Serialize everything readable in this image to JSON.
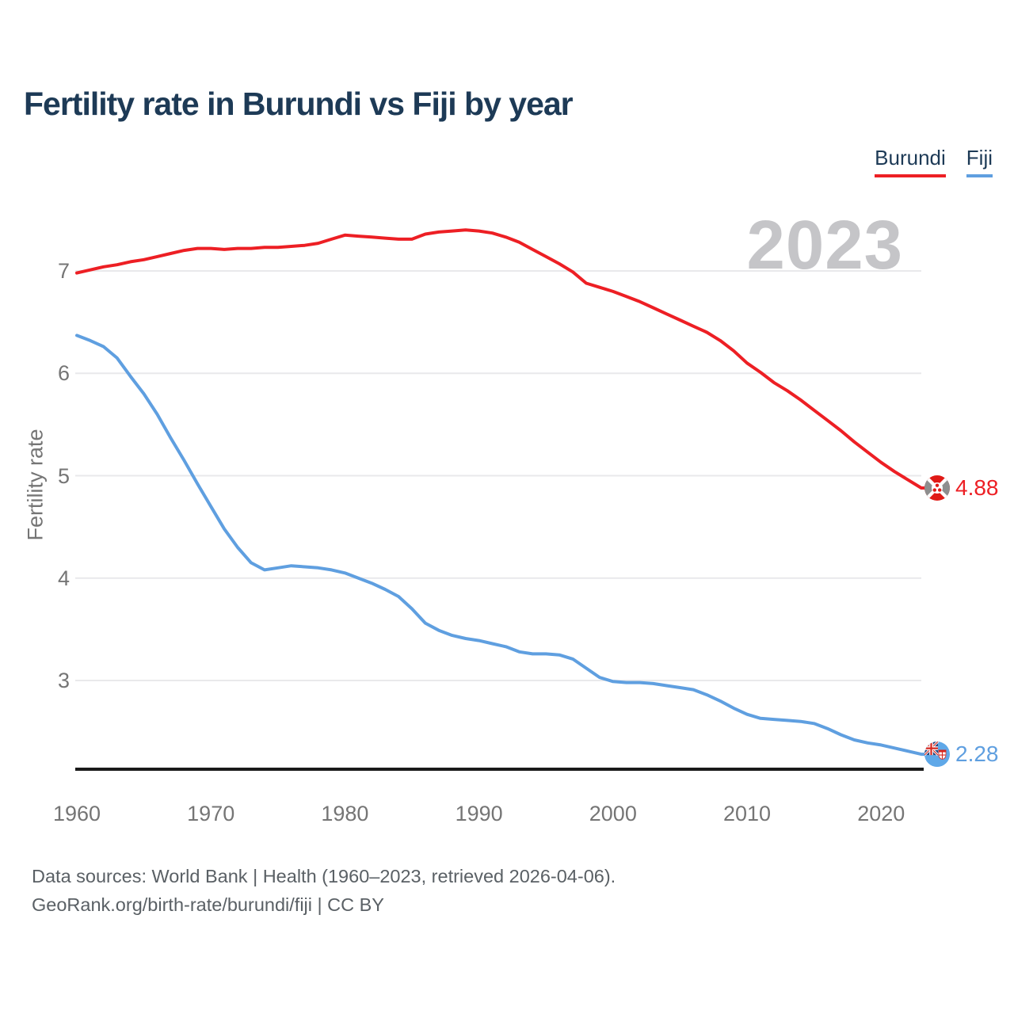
{
  "header": {
    "title": "Fertility rate in Burundi vs Fiji by year"
  },
  "legend": {
    "position": "top-right",
    "items": [
      {
        "label": "Burundi",
        "color": "#ed1f24"
      },
      {
        "label": "Fiji",
        "color": "#5f9fe0"
      }
    ]
  },
  "chart_data": {
    "type": "line",
    "title": "Fertility rate in Burundi vs Fiji by year",
    "ylabel": "Fertility rate",
    "watermark": "2023",
    "grid": "horizontal",
    "legend_position": "top-right",
    "x_ticks": [
      1960,
      1970,
      1980,
      1990,
      2000,
      2010,
      2020
    ],
    "y_ticks": [
      3,
      4,
      5,
      6,
      7
    ],
    "xlim": [
      1960,
      2023
    ],
    "ylim": [
      2.1,
      7.65
    ],
    "x": [
      1960,
      1961,
      1962,
      1963,
      1964,
      1965,
      1966,
      1967,
      1968,
      1969,
      1970,
      1971,
      1972,
      1973,
      1974,
      1975,
      1976,
      1977,
      1978,
      1979,
      1980,
      1981,
      1982,
      1983,
      1984,
      1985,
      1986,
      1987,
      1988,
      1989,
      1990,
      1991,
      1992,
      1993,
      1994,
      1995,
      1996,
      1997,
      1998,
      1999,
      2000,
      2001,
      2002,
      2003,
      2004,
      2005,
      2006,
      2007,
      2008,
      2009,
      2010,
      2011,
      2012,
      2013,
      2014,
      2015,
      2016,
      2017,
      2018,
      2019,
      2020,
      2021,
      2022,
      2023
    ],
    "series": [
      {
        "name": "Burundi",
        "color": "#ed1f24",
        "end_label": "4.88",
        "end_marker": "burundi-flag-icon",
        "values": [
          6.98,
          7.01,
          7.04,
          7.06,
          7.09,
          7.11,
          7.14,
          7.17,
          7.2,
          7.22,
          7.22,
          7.21,
          7.22,
          7.22,
          7.23,
          7.23,
          7.24,
          7.25,
          7.27,
          7.31,
          7.35,
          7.34,
          7.33,
          7.32,
          7.31,
          7.31,
          7.36,
          7.38,
          7.39,
          7.4,
          7.39,
          7.37,
          7.33,
          7.28,
          7.21,
          7.14,
          7.07,
          6.99,
          6.88,
          6.84,
          6.8,
          6.75,
          6.7,
          6.64,
          6.58,
          6.52,
          6.46,
          6.4,
          6.32,
          6.22,
          6.1,
          6.01,
          5.91,
          5.83,
          5.74,
          5.64,
          5.54,
          5.44,
          5.33,
          5.23,
          5.13,
          5.04,
          4.96,
          4.88
        ]
      },
      {
        "name": "Fiji",
        "color": "#5f9fe0",
        "end_label": "2.28",
        "end_marker": "fiji-flag-icon",
        "values": [
          6.37,
          6.32,
          6.26,
          6.15,
          5.97,
          5.8,
          5.6,
          5.37,
          5.15,
          4.92,
          4.7,
          4.48,
          4.3,
          4.15,
          4.08,
          4.1,
          4.12,
          4.11,
          4.1,
          4.08,
          4.05,
          4.0,
          3.95,
          3.89,
          3.82,
          3.7,
          3.56,
          3.49,
          3.44,
          3.41,
          3.39,
          3.36,
          3.33,
          3.28,
          3.26,
          3.26,
          3.25,
          3.21,
          3.12,
          3.03,
          2.99,
          2.98,
          2.98,
          2.97,
          2.95,
          2.93,
          2.91,
          2.86,
          2.8,
          2.73,
          2.67,
          2.63,
          2.62,
          2.61,
          2.6,
          2.58,
          2.53,
          2.47,
          2.42,
          2.39,
          2.37,
          2.34,
          2.31,
          2.28
        ]
      }
    ]
  },
  "footer": {
    "line1": "Data sources: World Bank | Health (1960–2023, retrieved 2026-04-06).",
    "line2": "GeoRank.org/birth-rate/burundi/fiji | CC BY"
  },
  "colors": {
    "title": "#1d3a56",
    "tick": "#757575",
    "grid": "#e9e9eb",
    "axis": "#1a1a1a",
    "watermark": "#c5c5c8",
    "footer": "#5a6065",
    "burundi": "#ed1f24",
    "fiji": "#5f9fe0"
  }
}
